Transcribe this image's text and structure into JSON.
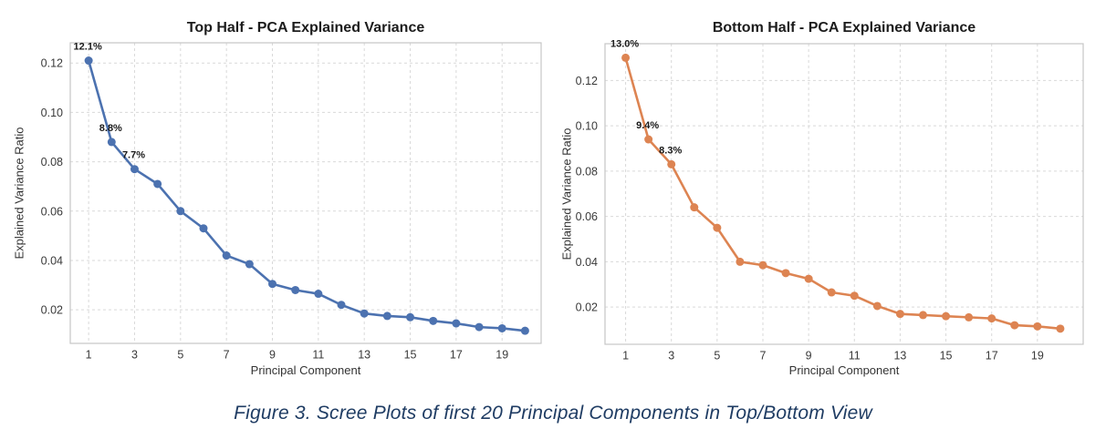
{
  "figure": {
    "caption": "Figure 3. Scree Plots of first 20 Principal Components in Top/Bottom View",
    "caption_color": "#1f3c63"
  },
  "chart_data": [
    {
      "type": "line",
      "title": "Top Half - PCA Explained Variance",
      "xlabel": "Principal Component",
      "ylabel": "Explained Variance Ratio",
      "line_color": "#4C72B0",
      "marker": "circle",
      "grid": true,
      "grid_style": "dashed",
      "legend": "none",
      "x": [
        1,
        2,
        3,
        4,
        5,
        6,
        7,
        8,
        9,
        10,
        11,
        12,
        13,
        14,
        15,
        16,
        17,
        18,
        19,
        20
      ],
      "values": [
        0.121,
        0.088,
        0.077,
        0.071,
        0.06,
        0.053,
        0.042,
        0.0385,
        0.0305,
        0.028,
        0.0265,
        0.022,
        0.0185,
        0.0175,
        0.017,
        0.0155,
        0.0145,
        0.013,
        0.0125,
        0.0115
      ],
      "annotations": [
        {
          "x": 1,
          "y": 0.121,
          "text": "12.1%"
        },
        {
          "x": 2,
          "y": 0.088,
          "text": "8.8%"
        },
        {
          "x": 3,
          "y": 0.077,
          "text": "7.7%"
        }
      ],
      "xticks": [
        1,
        3,
        5,
        7,
        9,
        11,
        13,
        15,
        17,
        19
      ],
      "yticks": [
        0.02,
        0.04,
        0.06,
        0.08,
        0.1,
        0.12
      ],
      "ytick_labels": [
        "0.02",
        "0.04",
        "0.06",
        "0.08",
        "0.10",
        "0.12"
      ],
      "xlim": [
        0.2,
        20.7
      ],
      "ylim": [
        0.0064,
        0.1282
      ]
    },
    {
      "type": "line",
      "title": "Bottom Half - PCA Explained Variance",
      "xlabel": "Principal Component",
      "ylabel": "Explained Variance Ratio",
      "line_color": "#DD8452",
      "marker": "circle",
      "grid": true,
      "grid_style": "dashed",
      "legend": "none",
      "x": [
        1,
        2,
        3,
        4,
        5,
        6,
        7,
        8,
        9,
        10,
        11,
        12,
        13,
        14,
        15,
        16,
        17,
        18,
        19,
        20
      ],
      "values": [
        0.13,
        0.094,
        0.083,
        0.064,
        0.055,
        0.04,
        0.0385,
        0.035,
        0.0325,
        0.0265,
        0.025,
        0.0205,
        0.017,
        0.0165,
        0.016,
        0.0155,
        0.015,
        0.012,
        0.0115,
        0.0105
      ],
      "annotations": [
        {
          "x": 1,
          "y": 0.13,
          "text": "13.0%"
        },
        {
          "x": 2,
          "y": 0.094,
          "text": "9.4%"
        },
        {
          "x": 3,
          "y": 0.083,
          "text": "8.3%"
        }
      ],
      "xticks": [
        1,
        3,
        5,
        7,
        9,
        11,
        13,
        15,
        17,
        19
      ],
      "yticks": [
        0.02,
        0.04,
        0.06,
        0.08,
        0.1,
        0.12
      ],
      "ytick_labels": [
        "0.02",
        "0.04",
        "0.06",
        "0.08",
        "0.10",
        "0.12"
      ],
      "xlim": [
        0.1,
        21.0
      ],
      "ylim": [
        0.0036,
        0.1362
      ]
    }
  ]
}
